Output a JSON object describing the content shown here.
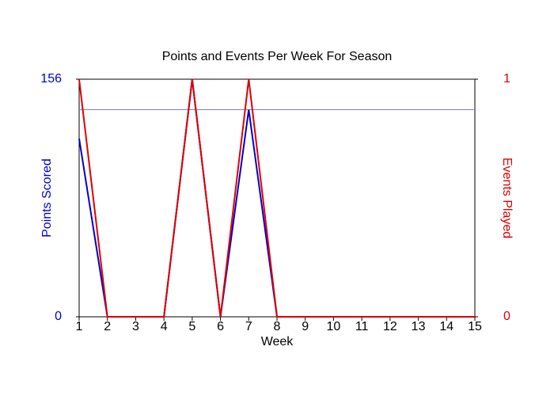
{
  "chart_data": {
    "type": "line",
    "title": "Points and Events Per Week For Season",
    "x_label": "Week",
    "y_label": "Points Scored",
    "y2_label": "Events Played",
    "x": [
      1,
      2,
      3,
      4,
      5,
      6,
      7,
      8,
      9,
      10,
      11,
      12,
      13,
      14,
      15
    ],
    "xlim": [
      1,
      15
    ],
    "xticks": [
      1,
      2,
      3,
      4,
      5,
      6,
      7,
      8,
      9,
      10,
      11,
      12,
      13,
      14,
      15
    ],
    "ylim": [
      0,
      156
    ],
    "yticks": [
      0,
      156
    ],
    "y2lim": [
      0,
      1
    ],
    "y2ticks": [
      0,
      1
    ],
    "y_color": "#0000cc",
    "y2_color": "#dd0000",
    "reference_line": {
      "value": 136,
      "color": "#8080c0"
    },
    "series": [
      {
        "name": "Points Scored",
        "color": "#0000cc",
        "values": [
          117,
          0,
          0,
          0,
          156,
          0,
          136,
          0,
          0,
          0,
          0,
          0,
          0,
          0,
          0
        ]
      },
      {
        "name": "Events Played",
        "color": "#dd0000",
        "axis": "y2",
        "values": [
          1,
          0,
          0,
          0,
          1,
          0,
          1,
          0,
          0,
          0,
          0,
          0,
          0,
          0,
          0
        ]
      }
    ]
  }
}
